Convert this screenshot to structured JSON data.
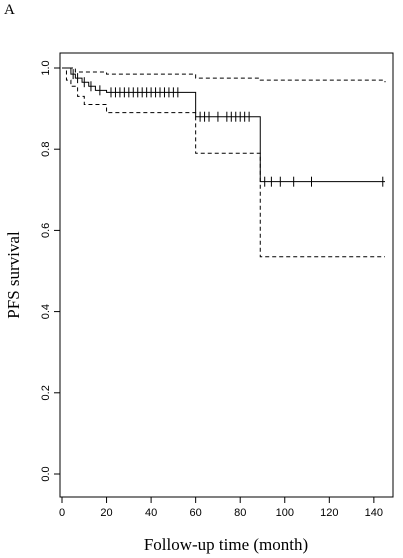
{
  "panel_label": "A",
  "chart_data": {
    "type": "line",
    "xlabel": "Follow-up time (month)",
    "ylabel": "PFS survival",
    "xlim": [
      0,
      145
    ],
    "ylim": [
      0.0,
      1.0
    ],
    "x_ticks": [
      "0",
      "20",
      "40",
      "60",
      "80",
      "100",
      "120",
      "140"
    ],
    "y_ticks": [
      "0.0",
      "0.2",
      "0.4",
      "0.6",
      "0.8",
      "1.0"
    ],
    "step_curves": [
      {
        "style": "solid",
        "x": [
          0,
          4,
          6,
          9,
          12,
          15,
          20,
          60,
          89,
          145
        ],
        "y": [
          1.0,
          0.985,
          0.975,
          0.965,
          0.955,
          0.945,
          0.94,
          0.88,
          0.72,
          0.72
        ]
      },
      {
        "style": "dashed",
        "x": [
          0,
          6,
          12,
          20,
          60,
          89,
          145
        ],
        "y": [
          1.0,
          0.99,
          0.99,
          0.985,
          0.975,
          0.97,
          0.965
        ]
      },
      {
        "style": "dashed",
        "x": [
          0,
          2,
          4,
          7,
          10,
          20,
          60,
          89,
          145
        ],
        "y": [
          1.0,
          0.97,
          0.955,
          0.93,
          0.91,
          0.89,
          0.79,
          0.535,
          0.535
        ]
      }
    ],
    "censor_marks": [
      {
        "x": 5,
        "y": 0.985
      },
      {
        "x": 7,
        "y": 0.975
      },
      {
        "x": 10,
        "y": 0.965
      },
      {
        "x": 13,
        "y": 0.955
      },
      {
        "x": 17,
        "y": 0.945
      },
      {
        "x": 22,
        "y": 0.94
      },
      {
        "x": 24,
        "y": 0.94
      },
      {
        "x": 26,
        "y": 0.94
      },
      {
        "x": 28,
        "y": 0.94
      },
      {
        "x": 30,
        "y": 0.94
      },
      {
        "x": 32,
        "y": 0.94
      },
      {
        "x": 34,
        "y": 0.94
      },
      {
        "x": 36,
        "y": 0.94
      },
      {
        "x": 38,
        "y": 0.94
      },
      {
        "x": 40,
        "y": 0.94
      },
      {
        "x": 42,
        "y": 0.94
      },
      {
        "x": 44,
        "y": 0.94
      },
      {
        "x": 46,
        "y": 0.94
      },
      {
        "x": 48,
        "y": 0.94
      },
      {
        "x": 50,
        "y": 0.94
      },
      {
        "x": 52,
        "y": 0.94
      },
      {
        "x": 62,
        "y": 0.88
      },
      {
        "x": 64,
        "y": 0.88
      },
      {
        "x": 66,
        "y": 0.88
      },
      {
        "x": 70,
        "y": 0.88
      },
      {
        "x": 74,
        "y": 0.88
      },
      {
        "x": 76,
        "y": 0.88
      },
      {
        "x": 78,
        "y": 0.88
      },
      {
        "x": 80,
        "y": 0.88
      },
      {
        "x": 82,
        "y": 0.88
      },
      {
        "x": 84,
        "y": 0.88
      },
      {
        "x": 91,
        "y": 0.72
      },
      {
        "x": 94,
        "y": 0.72
      },
      {
        "x": 98,
        "y": 0.72
      },
      {
        "x": 104,
        "y": 0.72
      },
      {
        "x": 112,
        "y": 0.72
      },
      {
        "x": 144,
        "y": 0.72
      }
    ],
    "grid": false,
    "legend": "none"
  }
}
